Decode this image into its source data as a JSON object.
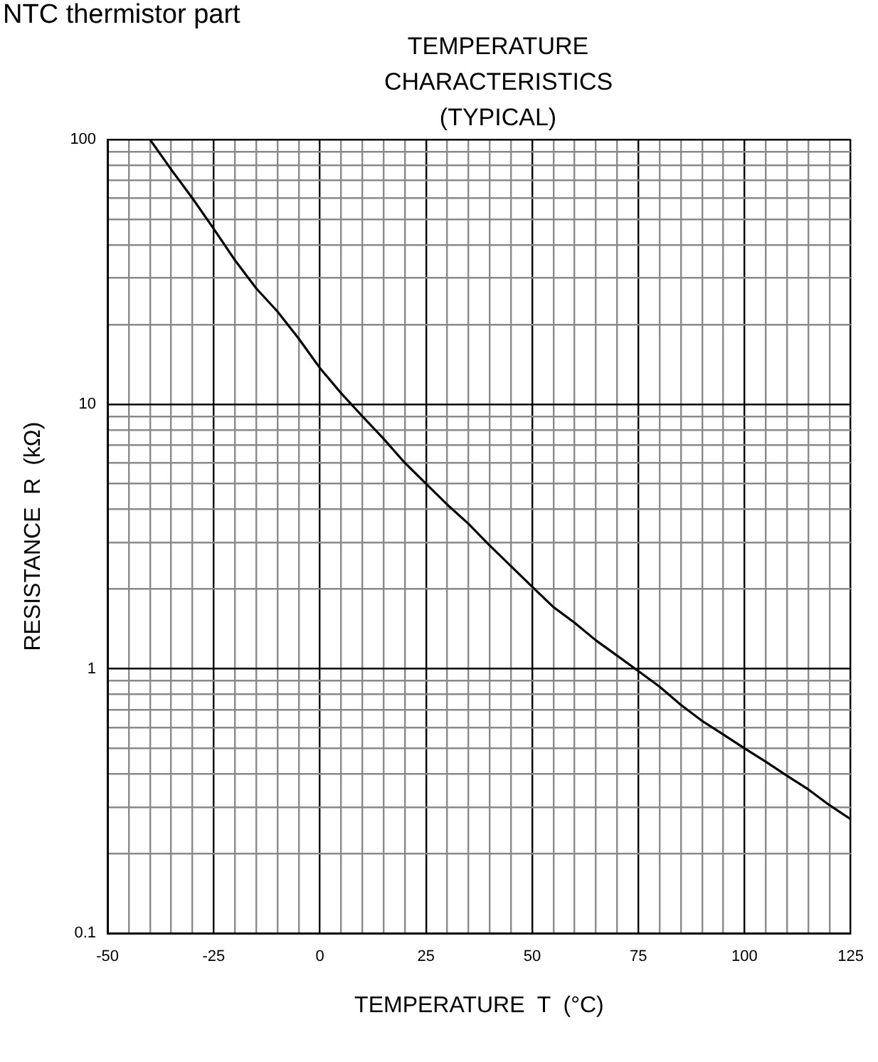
{
  "chart_data": {
    "type": "line",
    "title": "TEMPERATURE CHARACTERISTICS (TYPICAL)",
    "xlabel": "TEMPERATURE  T  (°C)",
    "ylabel": "RESISTANCE  R  (kΩ)",
    "annotations": [
      "NTC thermistor part"
    ],
    "x": [
      -40,
      -35,
      -30,
      -25,
      -20,
      -15,
      -10,
      -5,
      0,
      5,
      10,
      15,
      20,
      25,
      30,
      35,
      40,
      45,
      50,
      55,
      60,
      65,
      70,
      75,
      80,
      85,
      90,
      95,
      100,
      105,
      110,
      115,
      120,
      125
    ],
    "series": [
      {
        "color": "#000000",
        "values": [
          100,
          77,
          60,
          46,
          35,
          27.4,
          22.4,
          17.7,
          13.7,
          11,
          9,
          7.4,
          6,
          5,
          4.17,
          3.53,
          2.92,
          2.44,
          2.04,
          1.71,
          1.49,
          1.28,
          1.12,
          0.98,
          0.855,
          0.73,
          0.635,
          0.564,
          0.5,
          0.445,
          0.394,
          0.35,
          0.305,
          0.27
        ]
      }
    ],
    "xlim": [
      -50,
      125
    ],
    "xticks": [
      -50,
      {
        "value": -45,
        "label": null
      },
      {
        "value": -40,
        "label": null
      },
      {
        "value": -35,
        "label": null
      },
      {
        "value": -30,
        "label": null
      },
      -25,
      {
        "value": -20,
        "label": null
      },
      {
        "value": -15,
        "label": null
      },
      {
        "value": -10,
        "label": null
      },
      {
        "value": -5,
        "label": null
      },
      0,
      {
        "value": 5,
        "label": null
      },
      {
        "value": 10,
        "label": null
      },
      {
        "value": 15,
        "label": null
      },
      {
        "value": 20,
        "label": null
      },
      25,
      {
        "value": 30,
        "label": null
      },
      {
        "value": 35,
        "label": null
      },
      {
        "value": 40,
        "label": null
      },
      {
        "value": 45,
        "label": null
      },
      50,
      {
        "value": 55,
        "label": null
      },
      {
        "value": 60,
        "label": null
      },
      {
        "value": 65,
        "label": null
      },
      {
        "value": 70,
        "label": null
      },
      75,
      {
        "value": 80,
        "label": null
      },
      {
        "value": 85,
        "label": null
      },
      {
        "value": 90,
        "label": null
      },
      {
        "value": 95,
        "label": null
      },
      100,
      {
        "value": 105,
        "label": null
      },
      {
        "value": 110,
        "label": null
      },
      {
        "value": 115,
        "label": null
      },
      {
        "value": 120,
        "label": null
      },
      125
    ],
    "ylim": [
      0.1,
      100
    ],
    "yticks": [
      0.1,
      {
        "value": 0.2,
        "label": null
      },
      {
        "value": 0.3,
        "label": null
      },
      {
        "value": 0.4,
        "label": null
      },
      {
        "value": 0.5,
        "label": null
      },
      {
        "value": 0.6,
        "label": null
      },
      {
        "value": 0.7,
        "label": null
      },
      {
        "value": 0.8,
        "label": null
      },
      {
        "value": 0.9,
        "label": null
      },
      1,
      {
        "value": 2,
        "label": null
      },
      {
        "value": 3,
        "label": null
      },
      {
        "value": 4,
        "label": null
      },
      {
        "value": 5,
        "label": null
      },
      {
        "value": 6,
        "label": null
      },
      {
        "value": 7,
        "label": null
      },
      {
        "value": 8,
        "label": null
      },
      {
        "value": 9,
        "label": null
      },
      10,
      {
        "value": 20,
        "label": null
      },
      {
        "value": 30,
        "label": null
      },
      {
        "value": 40,
        "label": null
      },
      {
        "value": 50,
        "label": null
      },
      {
        "value": 60,
        "label": null
      },
      {
        "value": 70,
        "label": null
      },
      {
        "value": 80,
        "label": null
      },
      {
        "value": 90,
        "label": null
      },
      100
    ],
    "log": "y",
    "grid": true,
    "legend": false,
    "marker": "none",
    "line_style": "solid"
  }
}
